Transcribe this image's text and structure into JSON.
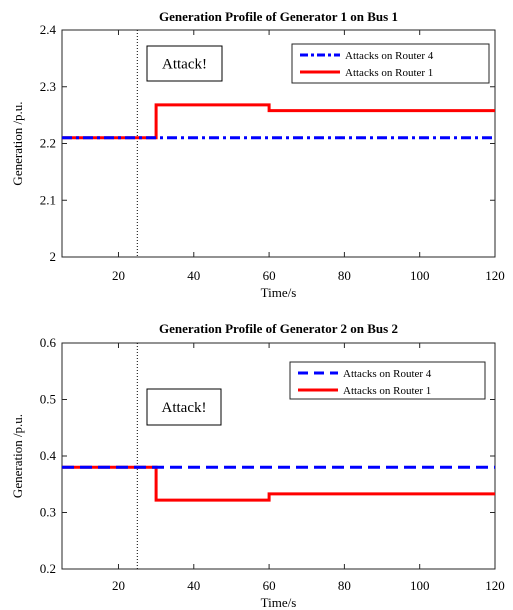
{
  "chart_data": [
    {
      "type": "line",
      "title": "Generation Profile of Generator 1 on Bus 1",
      "xlabel": "Time/s",
      "ylabel": "Generation /p.u.",
      "xlim": [
        5,
        120
      ],
      "ylim": [
        2,
        2.4
      ],
      "xticks": [
        20,
        40,
        60,
        80,
        100,
        120
      ],
      "yticks": [
        2,
        2.1,
        2.2,
        2.3,
        2.4
      ],
      "ytick_labels": [
        "2",
        "2.1",
        "2.2",
        "2.3",
        "2.4"
      ],
      "attack_time": 25,
      "annotation": "Attack!",
      "legend_position": "top-right",
      "series": [
        {
          "name": "Attacks on Router 4",
          "color": "#0000ff",
          "style": "dashdot",
          "x": [
            5,
            120
          ],
          "y": [
            2.21,
            2.21
          ]
        },
        {
          "name": "Attacks on Router 1",
          "color": "#ff0000",
          "style": "solid",
          "x": [
            5,
            30,
            30,
            60,
            60,
            120
          ],
          "y": [
            2.21,
            2.21,
            2.268,
            2.268,
            2.258,
            2.258
          ]
        }
      ]
    },
    {
      "type": "line",
      "title": "Generation Profile of Generator 2 on Bus 2",
      "xlabel": "Time/s",
      "ylabel": "Generation /p.u.",
      "xlim": [
        5,
        120
      ],
      "ylim": [
        0.2,
        0.6
      ],
      "xticks": [
        20,
        40,
        60,
        80,
        100,
        120
      ],
      "yticks": [
        0.2,
        0.3,
        0.4,
        0.5,
        0.6
      ],
      "ytick_labels": [
        "0.2",
        "0.3",
        "0.4",
        "0.5",
        "0.6"
      ],
      "attack_time": 25,
      "annotation": "Attack!",
      "legend_position": "top-right",
      "series": [
        {
          "name": "Attacks on Router 4",
          "color": "#0000ff",
          "style": "dashed",
          "x": [
            5,
            120
          ],
          "y": [
            0.38,
            0.38
          ]
        },
        {
          "name": "Attacks on Router 1",
          "color": "#ff0000",
          "style": "solid",
          "x": [
            5,
            30,
            30,
            60,
            60,
            120
          ],
          "y": [
            0.38,
            0.38,
            0.322,
            0.322,
            0.333,
            0.333
          ]
        }
      ]
    }
  ]
}
